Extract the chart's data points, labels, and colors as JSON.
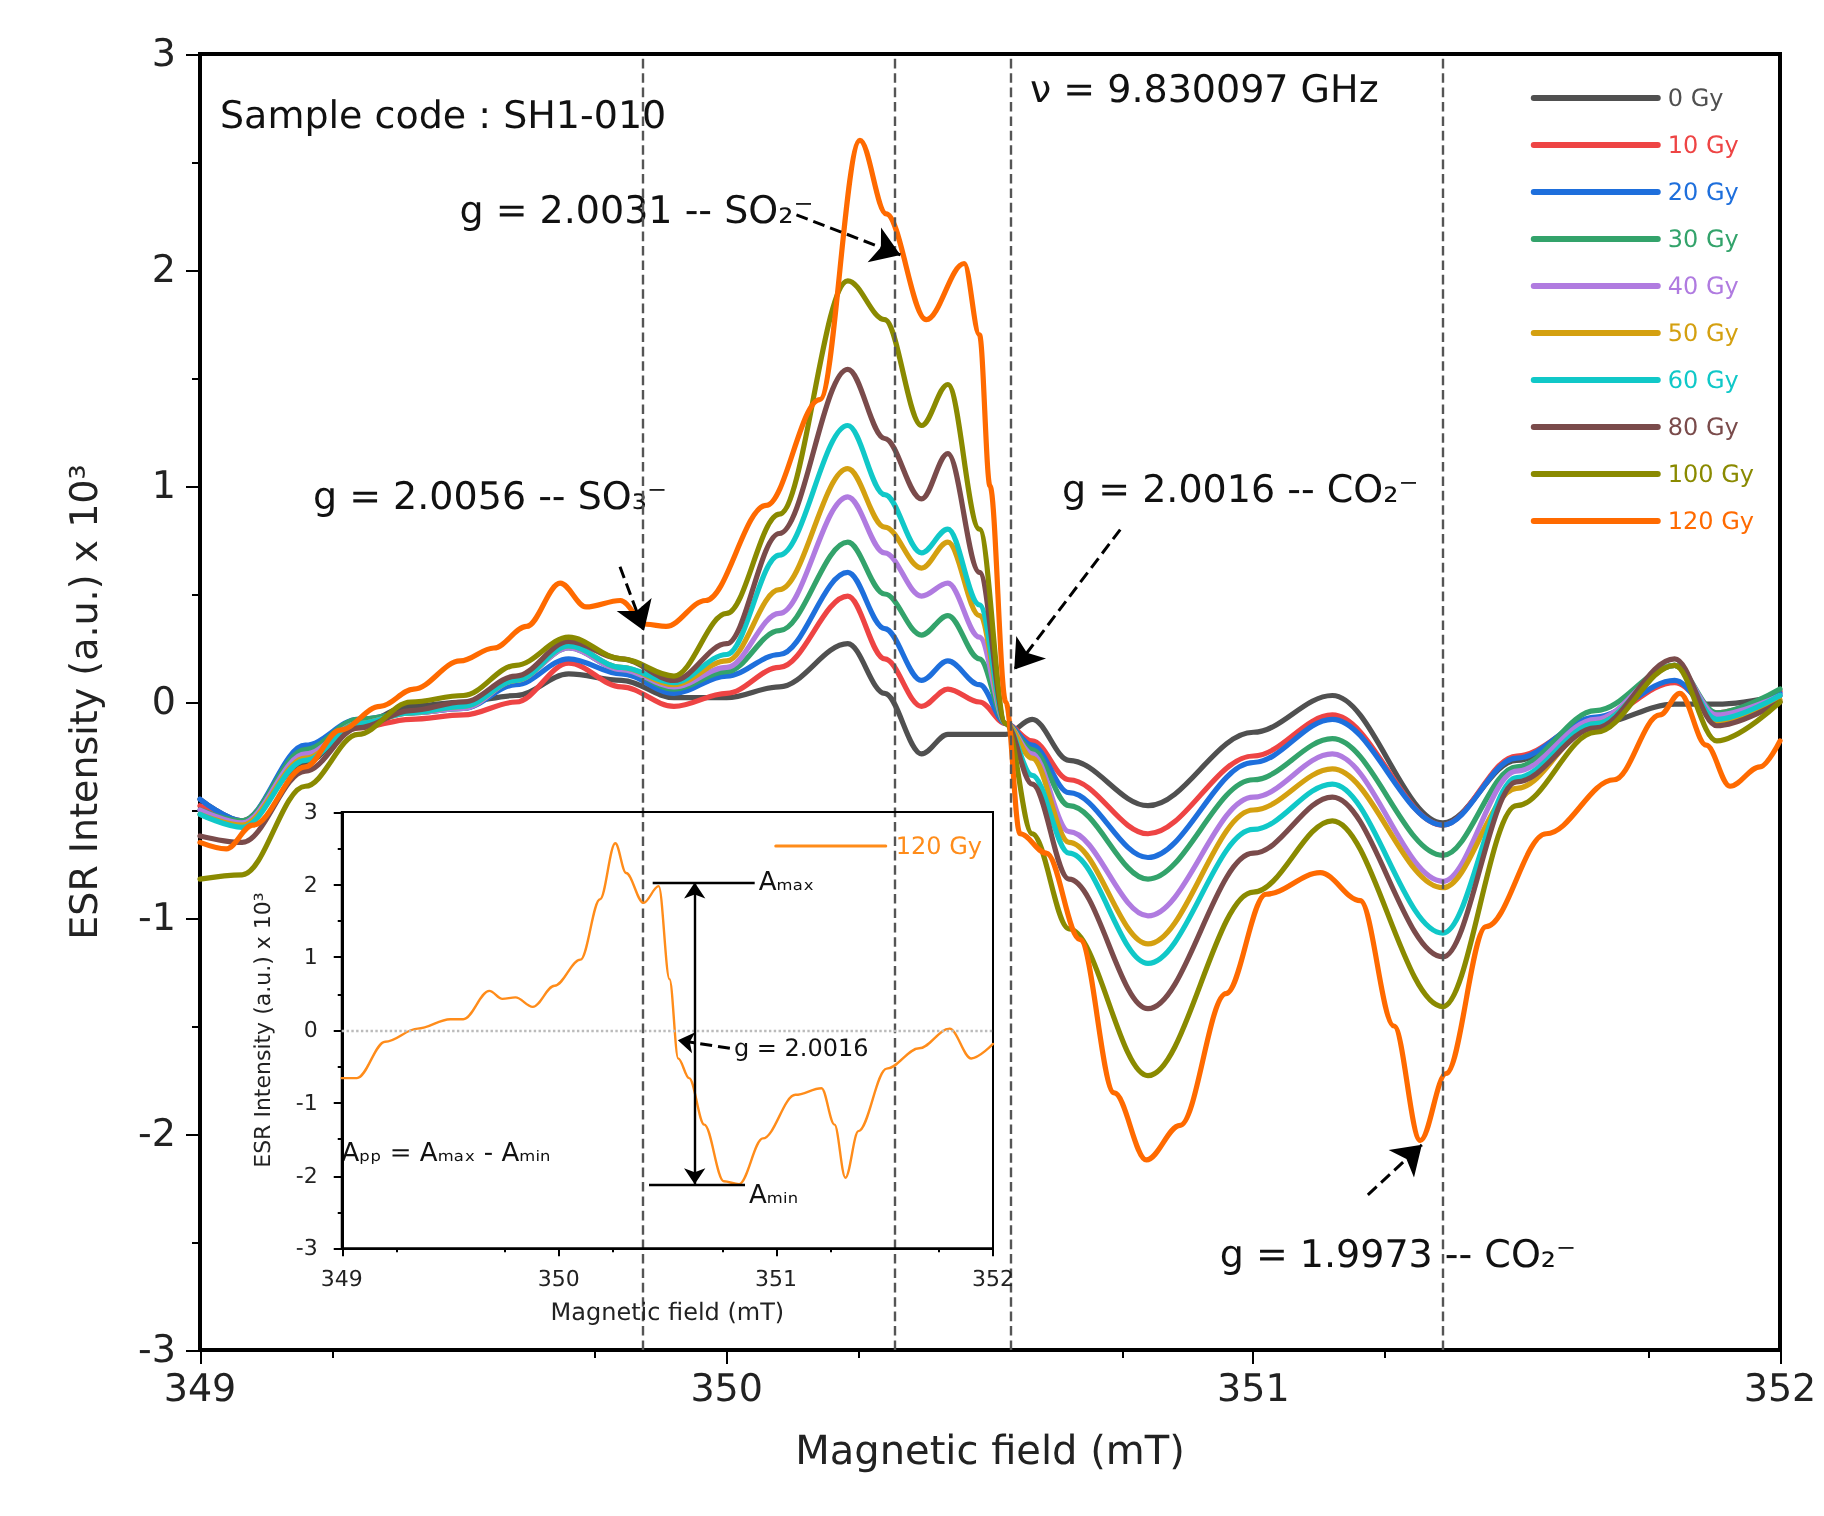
{
  "chart_data": [
    {
      "type": "line",
      "xlabel": "Magnetic field (mT)",
      "ylabel": "ESR Intensity (a.u.) x 10³",
      "annotations": [
        "Sample code : SH1-010",
        "ν = 9.830097 GHz",
        {
          "text": "g = 2.0056 -- SO₃⁻",
          "x": 349.843,
          "y": 0.33
        },
        {
          "text": "g = 2.0031 -- SO₂⁻",
          "x": 350.33,
          "y": 2.07
        },
        {
          "text": "g = 2.0016 -- CO₂⁻",
          "x": 350.546,
          "y": 0.15
        },
        {
          "text": "g = 1.9973 -- CO₂⁻",
          "x": 351.32,
          "y": -2.05
        }
      ],
      "xlim": [
        349,
        352
      ],
      "ylim": [
        -3,
        3
      ],
      "xticks": [
        349,
        350,
        351,
        352
      ],
      "yticks": [
        -3,
        -2,
        -1,
        0,
        1,
        2,
        3
      ],
      "legend": "top right",
      "grid": false,
      "marker": "none",
      "line_style": "solid",
      "ref_lines": [
        {
          "axis": "x",
          "value": 349.843,
          "color": "#555555",
          "line_style": "dashed"
        },
        {
          "axis": "x",
          "value": 350.318,
          "color": "#555555",
          "line_style": "dashed"
        },
        {
          "axis": "x",
          "value": 350.538,
          "color": "#555555",
          "line_style": "dashed"
        },
        {
          "axis": "x",
          "value": 351.355,
          "color": "#555555",
          "line_style": "dashed"
        }
      ],
      "x": [
        349.0,
        349.08,
        349.2,
        349.3,
        349.4,
        349.5,
        349.6,
        349.7,
        349.8,
        349.9,
        350.0,
        350.1,
        350.23,
        350.3,
        350.37,
        350.42,
        350.48,
        350.53,
        350.58,
        350.65,
        350.8,
        351.0,
        351.15,
        351.36,
        351.5,
        351.65,
        351.8,
        351.88,
        352.0
      ],
      "series": [
        {
          "name": "0 Gy",
          "color": "#505050",
          "values": [
            -0.45,
            -0.55,
            -0.28,
            -0.1,
            -0.02,
            0.0,
            0.03,
            0.13,
            0.1,
            0.02,
            0.02,
            0.07,
            0.27,
            0.04,
            -0.24,
            -0.15,
            -0.15,
            -0.15,
            -0.08,
            -0.27,
            -0.48,
            -0.14,
            0.03,
            -0.56,
            -0.27,
            -0.1,
            -0.01,
            -0.01,
            0.03
          ]
        },
        {
          "name": "10 Gy",
          "color": "#ee4444",
          "values": [
            -0.48,
            -0.55,
            -0.22,
            -0.12,
            -0.08,
            -0.06,
            0.0,
            0.18,
            0.07,
            -0.02,
            0.04,
            0.16,
            0.49,
            0.2,
            -0.02,
            0.06,
            0.0,
            -0.1,
            -0.18,
            -0.36,
            -0.61,
            -0.25,
            -0.06,
            -0.57,
            -0.25,
            -0.08,
            0.09,
            -0.05,
            0.05
          ]
        },
        {
          "name": "20 Gy",
          "color": "#1e6fdc",
          "values": [
            -0.45,
            -0.55,
            -0.2,
            -0.08,
            -0.05,
            -0.03,
            0.08,
            0.2,
            0.13,
            0.04,
            0.12,
            0.22,
            0.6,
            0.34,
            0.1,
            0.19,
            0.08,
            -0.1,
            -0.2,
            -0.42,
            -0.72,
            -0.28,
            -0.08,
            -0.57,
            -0.26,
            -0.07,
            0.1,
            -0.07,
            0.04
          ]
        },
        {
          "name": "30 Gy",
          "color": "#33a36b",
          "values": [
            -0.5,
            -0.55,
            -0.22,
            -0.08,
            -0.05,
            -0.03,
            0.1,
            0.25,
            0.15,
            0.06,
            0.14,
            0.33,
            0.74,
            0.5,
            0.31,
            0.4,
            0.2,
            -0.1,
            -0.22,
            -0.48,
            -0.82,
            -0.36,
            -0.17,
            -0.71,
            -0.3,
            -0.04,
            0.17,
            -0.05,
            0.06
          ]
        },
        {
          "name": "40 Gy",
          "color": "#b07be0",
          "values": [
            -0.5,
            -0.56,
            -0.24,
            -0.1,
            -0.05,
            -0.03,
            0.1,
            0.25,
            0.15,
            0.07,
            0.16,
            0.41,
            0.95,
            0.69,
            0.49,
            0.55,
            0.3,
            -0.1,
            -0.24,
            -0.6,
            -0.99,
            -0.44,
            -0.24,
            -0.83,
            -0.32,
            -0.08,
            0.17,
            -0.06,
            0.03
          ]
        },
        {
          "name": "50 Gy",
          "color": "#d4a010",
          "values": [
            -0.52,
            -0.57,
            -0.26,
            -0.1,
            -0.05,
            -0.02,
            0.1,
            0.26,
            0.16,
            0.08,
            0.19,
            0.52,
            1.08,
            0.81,
            0.62,
            0.74,
            0.4,
            -0.1,
            -0.26,
            -0.65,
            -1.12,
            -0.5,
            -0.31,
            -0.86,
            -0.4,
            -0.1,
            0.17,
            -0.09,
            0.01
          ]
        },
        {
          "name": "60 Gy",
          "color": "#10c8c8",
          "values": [
            -0.52,
            -0.58,
            -0.27,
            -0.1,
            -0.05,
            -0.02,
            0.1,
            0.26,
            0.16,
            0.09,
            0.22,
            0.68,
            1.28,
            0.96,
            0.69,
            0.8,
            0.45,
            -0.1,
            -0.34,
            -0.7,
            -1.21,
            -0.59,
            -0.38,
            -1.07,
            -0.35,
            -0.1,
            0.17,
            -0.08,
            0.03
          ]
        },
        {
          "name": "80 Gy",
          "color": "#7a4b4b",
          "values": [
            -0.62,
            -0.65,
            -0.32,
            -0.12,
            -0.04,
            0.0,
            0.12,
            0.28,
            0.2,
            0.1,
            0.27,
            0.78,
            1.54,
            1.22,
            0.94,
            1.15,
            0.6,
            -0.1,
            -0.38,
            -0.82,
            -1.42,
            -0.7,
            -0.44,
            -1.18,
            -0.37,
            -0.12,
            0.2,
            -0.11,
            0.0
          ]
        },
        {
          "name": "100 Gy",
          "color": "#8a8a00",
          "values": [
            -0.82,
            -0.8,
            -0.39,
            -0.15,
            0.0,
            0.03,
            0.17,
            0.3,
            0.2,
            0.12,
            0.41,
            0.87,
            1.95,
            1.77,
            1.28,
            1.47,
            0.8,
            -0.1,
            -0.61,
            -1.05,
            -1.73,
            -0.88,
            -0.55,
            -1.41,
            -0.48,
            -0.14,
            0.17,
            -0.18,
            0.0
          ]
        },
        {
          "name": "120 Gy",
          "color": "#ff6a00",
          "x": [
            349.0,
            349.05,
            349.1,
            349.2,
            349.266,
            349.342,
            349.406,
            349.494,
            349.558,
            349.62,
            349.684,
            349.733,
            349.798,
            349.847,
            349.885,
            349.96,
            350.075,
            350.177,
            350.253,
            350.303,
            350.379,
            350.451,
            350.48,
            350.5,
            350.53,
            350.557,
            350.607,
            350.671,
            350.736,
            350.797,
            350.861,
            350.948,
            351.024,
            351.127,
            351.203,
            351.267,
            351.317,
            351.366,
            351.442,
            351.556,
            351.685,
            351.772,
            351.81,
            351.86,
            351.905,
            351.962,
            352.0
          ],
          "values": [
            -0.65,
            -0.68,
            -0.57,
            -0.3,
            -0.13,
            -0.02,
            0.06,
            0.19,
            0.25,
            0.35,
            0.55,
            0.44,
            0.47,
            0.36,
            0.35,
            0.47,
            0.91,
            1.4,
            2.6,
            2.26,
            1.77,
            2.03,
            1.7,
            1.0,
            0.0,
            -0.61,
            -0.7,
            -1.1,
            -1.81,
            -2.12,
            -1.96,
            -1.35,
            -0.89,
            -0.79,
            -0.92,
            -1.5,
            -2.03,
            -1.72,
            -1.04,
            -0.61,
            -0.36,
            -0.06,
            0.04,
            -0.2,
            -0.39,
            -0.3,
            -0.18
          ]
        }
      ]
    },
    {
      "type": "line",
      "xlabel": "Magnetic field (mT)",
      "ylabel": "ESR Intensity (a.u.) x 10³",
      "annotations": [
        {
          "text": "Aₘₐₓ",
          "x": 350.46,
          "y": 2.03
        },
        {
          "text": "Aₘᵢₙ",
          "x": 350.83,
          "y": -2.12
        },
        {
          "text": "g = 2.0016",
          "x": 350.53,
          "y": -0.14
        },
        "Aₚₚ = Aₘₐₓ - Aₘᵢₙ"
      ],
      "xlim": [
        349,
        352
      ],
      "ylim": [
        -3,
        3
      ],
      "xticks": [
        349,
        350,
        351,
        352
      ],
      "yticks": [
        -3,
        -2,
        -1,
        0,
        1,
        2,
        3
      ],
      "legend": "top right",
      "grid": false,
      "marker": "none",
      "line_style": "solid",
      "ref_lines": [
        {
          "axis": "y",
          "value": 0,
          "color": "#bbbbbb",
          "line_style": "dotted"
        }
      ],
      "series": [
        {
          "name": "120 Gy",
          "color": "#ff8c1a",
          "x": [
            349.0,
            349.07,
            349.2,
            349.35,
            349.5,
            349.56,
            349.68,
            349.74,
            349.8,
            349.88,
            349.98,
            350.1,
            350.19,
            350.26,
            350.31,
            350.39,
            350.46,
            350.51,
            350.55,
            350.6,
            350.67,
            350.76,
            350.83,
            350.94,
            351.09,
            351.21,
            351.27,
            351.32,
            351.38,
            351.51,
            351.66,
            351.8,
            351.9,
            352.0
          ],
          "values": [
            -0.66,
            -0.66,
            -0.16,
            0.02,
            0.15,
            0.15,
            0.54,
            0.43,
            0.45,
            0.32,
            0.61,
            0.97,
            1.8,
            2.57,
            2.16,
            1.75,
            1.98,
            0.7,
            -0.39,
            -0.66,
            -1.3,
            -2.08,
            -2.12,
            -1.49,
            -0.89,
            -0.8,
            -1.3,
            -2.03,
            -1.39,
            -0.53,
            -0.25,
            0.02,
            -0.39,
            -0.19
          ]
        }
      ]
    }
  ]
}
